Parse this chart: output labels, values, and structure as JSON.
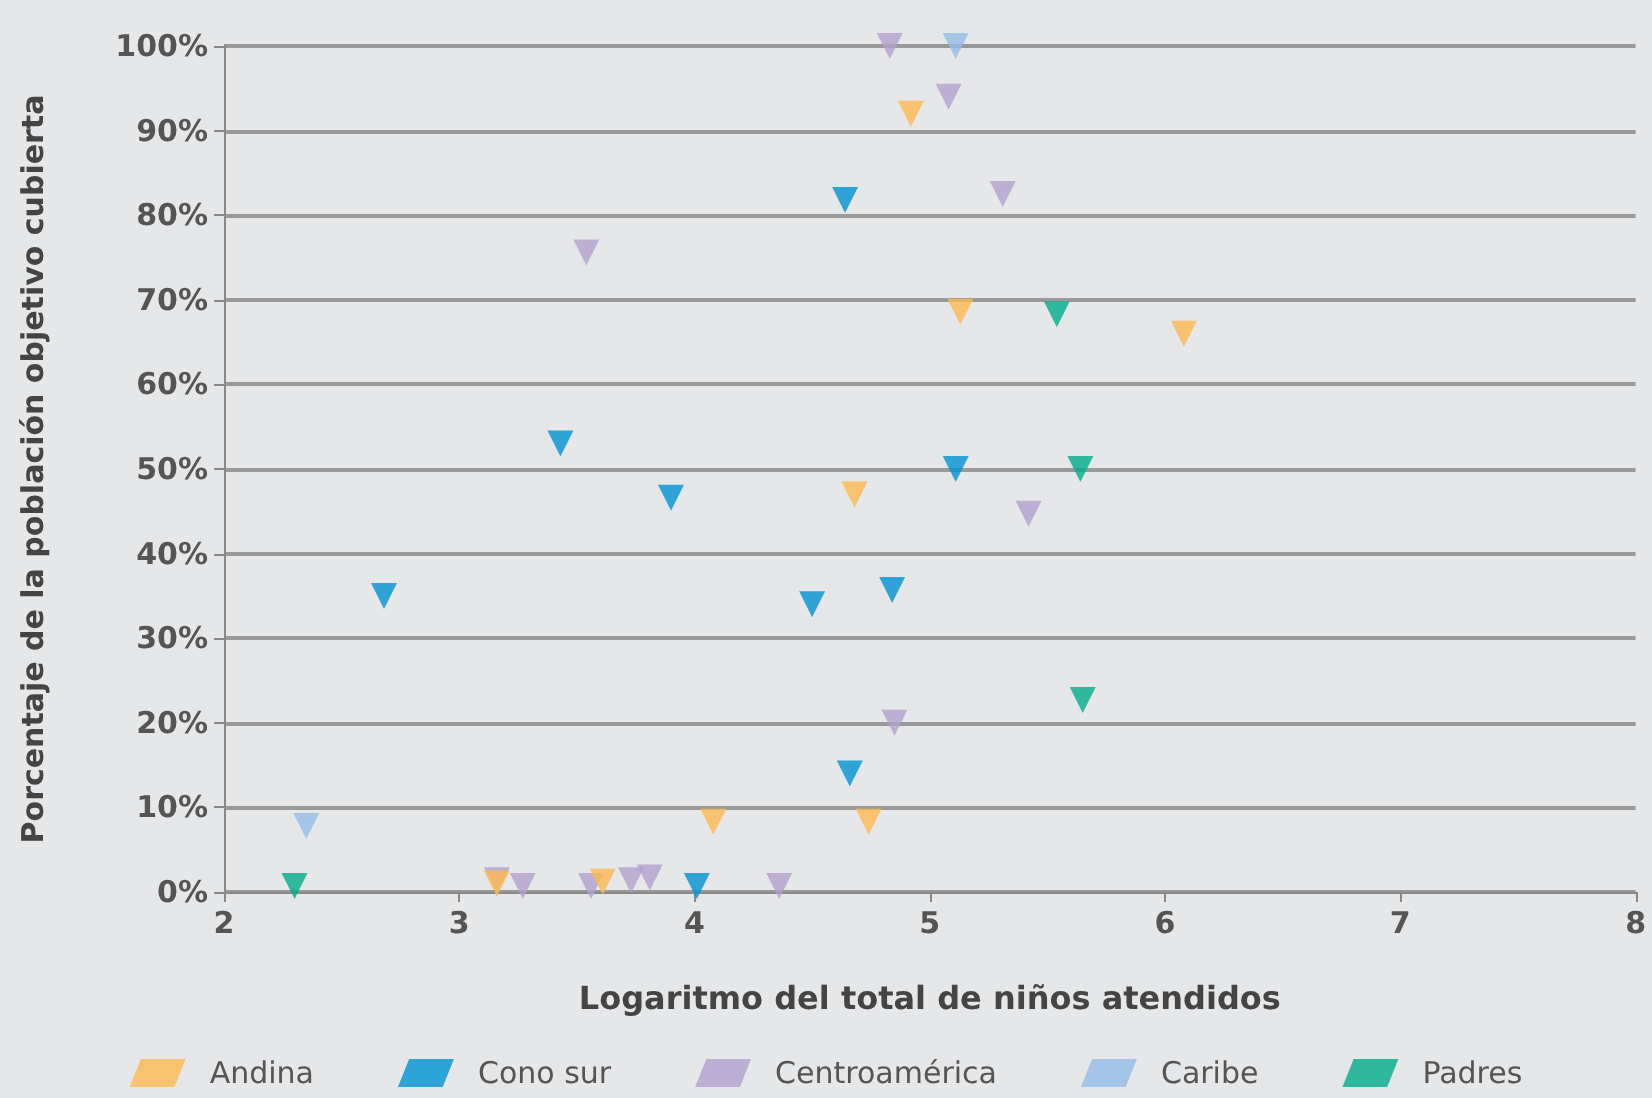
{
  "chart_data": {
    "type": "scatter",
    "xlabel": "Logaritmo del total de niños atendidos",
    "ylabel": "Porcentaje de la población objetivo cubierta",
    "xlim": [
      2,
      8
    ],
    "xticks": [
      2,
      3,
      4,
      5,
      6,
      7,
      8
    ],
    "ylim": [
      0,
      100
    ],
    "yticks": [
      {
        "value": 0,
        "label": "0%"
      },
      {
        "value": 10,
        "label": "10%"
      },
      {
        "value": 20,
        "label": "20%"
      },
      {
        "value": 30,
        "label": "30%"
      },
      {
        "value": 40,
        "label": "40%"
      },
      {
        "value": 50,
        "label": "50%"
      },
      {
        "value": 60,
        "label": "60%"
      },
      {
        "value": 70,
        "label": "70%"
      },
      {
        "value": 80,
        "label": "80%"
      },
      {
        "value": 90,
        "label": "90%"
      },
      {
        "value": 100,
        "label": "100%"
      }
    ],
    "grid": "y",
    "legend": "bottom",
    "marker": "triangle",
    "series": [
      {
        "name": "Andina",
        "color": "#fdb94f",
        "x": [
          4.92,
          5.13,
          4.68,
          6.08,
          4.08,
          4.74,
          3.16,
          3.61
        ],
        "values": [
          92,
          68.6,
          47,
          66,
          8.3,
          8.3,
          1,
          1.2
        ]
      },
      {
        "name": "Cono sur",
        "color": "#0092d0",
        "x": [
          4.64,
          3.43,
          3.9,
          2.68,
          4.5,
          4.84,
          5.11,
          4.66,
          4.01
        ],
        "values": [
          81.8,
          53,
          46.6,
          35,
          34,
          35.7,
          50,
          14,
          0.7
        ]
      },
      {
        "name": "Centroamérica",
        "color": "#b3a1cd",
        "x": [
          4.83,
          3.54,
          5.08,
          5.31,
          5.42,
          4.85,
          3.16,
          3.27,
          3.56,
          3.73,
          3.81,
          4.36
        ],
        "values": [
          100,
          75.6,
          94,
          82.5,
          44.7,
          20,
          1.4,
          0.7,
          0.7,
          1.4,
          1.7,
          0.7
        ]
      },
      {
        "name": "Caribe",
        "color": "#93bde6",
        "x": [
          5.11,
          2.35
        ],
        "values": [
          100,
          7.8
        ]
      },
      {
        "name": "Padres",
        "color": "#00ae8c",
        "x": [
          5.54,
          5.64,
          5.65,
          2.3
        ],
        "values": [
          68.3,
          50,
          22.7,
          0.7
        ]
      }
    ]
  }
}
